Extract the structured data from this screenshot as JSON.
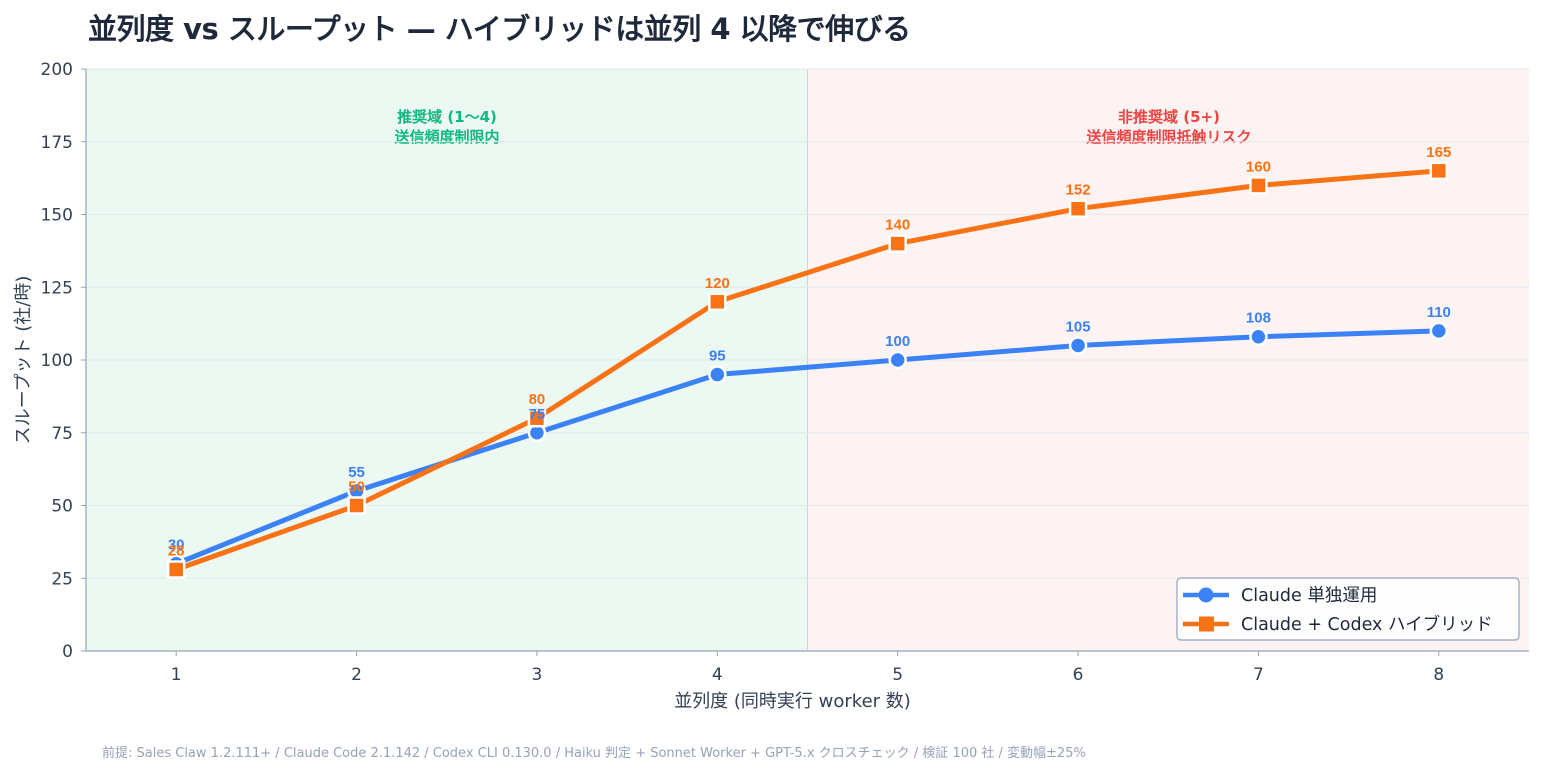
{
  "title": "並列度 vs スループット — ハイブリッドは並列 4 以降で伸びる",
  "footnote": "前提: Sales Claw 1.2.111+ / Claude Code 2.1.142 / Codex CLI 0.130.0 / Haiku 判定 + Sonnet Worker + GPT-5.x クロスチェック / 検証 100 社 / 変動幅±25%",
  "colors": {
    "series1": "#3b82f6",
    "series2": "#f97316",
    "recommended_bg": "#ecf8f2",
    "not_recommended_bg": "#fdf3f3",
    "recommended_text": "#10b981",
    "not_recommended_text": "#ef4444",
    "grid": "#e2e8f0",
    "axis": "#94a3b8"
  },
  "chart_data": {
    "type": "line",
    "title": "並列度 vs スループット — ハイブリッドは並列 4 以降で伸びる",
    "xlabel": "並列度 (同時実行 worker 数)",
    "ylabel": "スループット (社/時)",
    "x": [
      1,
      2,
      3,
      4,
      5,
      6,
      7,
      8
    ],
    "xlim": [
      0.5,
      8.5
    ],
    "ylim": [
      0,
      200
    ],
    "yticks": [
      0,
      25,
      50,
      75,
      100,
      125,
      150,
      175,
      200
    ],
    "grid": true,
    "legend_position": "bottom-right",
    "series": [
      {
        "name": "Claude 単独運用",
        "values": [
          30,
          55,
          75,
          95,
          100,
          105,
          108,
          110
        ],
        "marker": "circle",
        "color": "#3b82f6"
      },
      {
        "name": "Claude + Codex ハイブリッド",
        "values": [
          28,
          50,
          80,
          120,
          140,
          152,
          160,
          165
        ],
        "marker": "square",
        "color": "#f97316"
      }
    ],
    "regions": [
      {
        "from": 0.5,
        "to": 4.5,
        "line1": "推奨域 (1〜4)",
        "line2": "送信頻度制限内",
        "color": "#10b981"
      },
      {
        "from": 4.5,
        "to": 8.5,
        "line1": "非推奨域 (5+)",
        "line2": "送信頻度制限抵触リスク",
        "color": "#ef4444"
      }
    ]
  }
}
